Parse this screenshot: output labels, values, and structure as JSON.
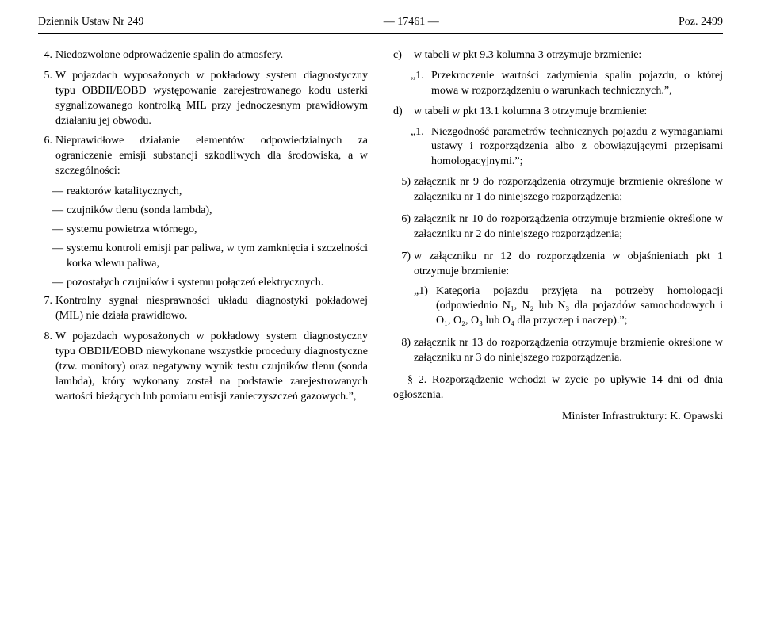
{
  "header": {
    "left": "Dziennik Ustaw Nr 249",
    "center": "— 17461 —",
    "right": "Poz. 2499"
  },
  "left_col": {
    "item4": {
      "n": "4.",
      "t": "Niedozwolone odprowadzenie spalin do atmosfery."
    },
    "item5": {
      "n": "5.",
      "t": "W pojazdach wyposażonych w pokładowy system diagnostyczny typu OBDII/EOBD występowanie zarejestrowanego kodu usterki sygnalizowanego kontrolką MIL przy jednoczesnym prawidłowym działaniu jej obwodu."
    },
    "item6": {
      "n": "6.",
      "t": "Nieprawidłowe działanie elementów odpowiedzialnych za ograniczenie emisji substancji szkodliwych dla środowiska, a w szczególności:"
    },
    "sub": {
      "a": "reaktorów katalitycznych,",
      "b": "czujników tlenu (sonda lambda),",
      "c": "systemu powietrza wtórnego,",
      "d": "systemu kontroli emisji par paliwa, w tym zamknięcia i szczelności korka wlewu paliwa,",
      "e": "pozostałych czujników i systemu połączeń elektrycznych."
    },
    "item7": {
      "n": "7.",
      "t": "Kontrolny sygnał niesprawności układu diagnostyki pokładowej (MIL) nie działa prawidłowo."
    },
    "item8": {
      "n": "8.",
      "t": "W pojazdach wyposażonych w pokładowy system diagnostyczny typu OBDII/EOBD niewykonane wszystkie procedury diagnostyczne (tzw. monitory) oraz negatywny wynik testu czujników tlenu (sonda lambda), który wykonany został na podstawie zarejestrowanych wartości bieżących lub pomiaru emisji zanieczyszczeń gazowych.”,"
    }
  },
  "right_col": {
    "c": {
      "ln": "c)",
      "lt": "w tabeli w pkt 9.3 kolumna 3 otrzymuje brzmienie:"
    },
    "c_quote": {
      "qn": "„1.",
      "qt": "Przekroczenie wartości zadymienia spalin pojazdu, o której mowa w rozporządzeniu o warunkach technicznych.”,"
    },
    "d": {
      "ln": "d)",
      "lt": "w tabeli w pkt 13.1 kolumna 3 otrzymuje brzmienie:"
    },
    "d_quote": {
      "qn": "„1.",
      "qt": "Niezgodność parametrów technicznych pojazdu z wymaganiami ustawy i rozporządzenia albo z obowiązującymi przepisami homologacyjnymi.”;"
    },
    "i5": {
      "l5n": "5)",
      "l5t": "załącznik nr 9 do rozporządzenia otrzymuje brzmienie określone w załączniku nr 1 do niniejszego rozporządzenia;"
    },
    "i6": {
      "l5n": "6)",
      "l5t": "załącznik nr 10 do rozporządzenia otrzymuje brzmienie określone w załączniku nr 2 do niniejszego rozporządzenia;"
    },
    "i7": {
      "l5n": "7)",
      "l5t": "w załączniku nr 12 do rozporządzenia w objaśnieniach pkt 1 otrzymuje brzmienie:"
    },
    "i7_quote": {
      "in": "„1)",
      "it": "Kategoria pojazdu przyjęta na potrzeby homologacji (odpowiednio N₁, N₂ lub N₃ dla pojazdów samochodowych i O₁, O₂, O₃ lub O₄ dla przyczep i naczep).”;"
    },
    "i8": {
      "l5n": "8)",
      "l5t": "załącznik nr 13 do rozporządzenia otrzymuje brzmienie określone w załączniku nr 3 do niniejszego rozporządzenia."
    },
    "para2": "§ 2. Rozporządzenie wchodzi w życie po upływie 14 dni od dnia ogłoszenia.",
    "minister": "Minister Infrastruktury: K. Opawski"
  }
}
